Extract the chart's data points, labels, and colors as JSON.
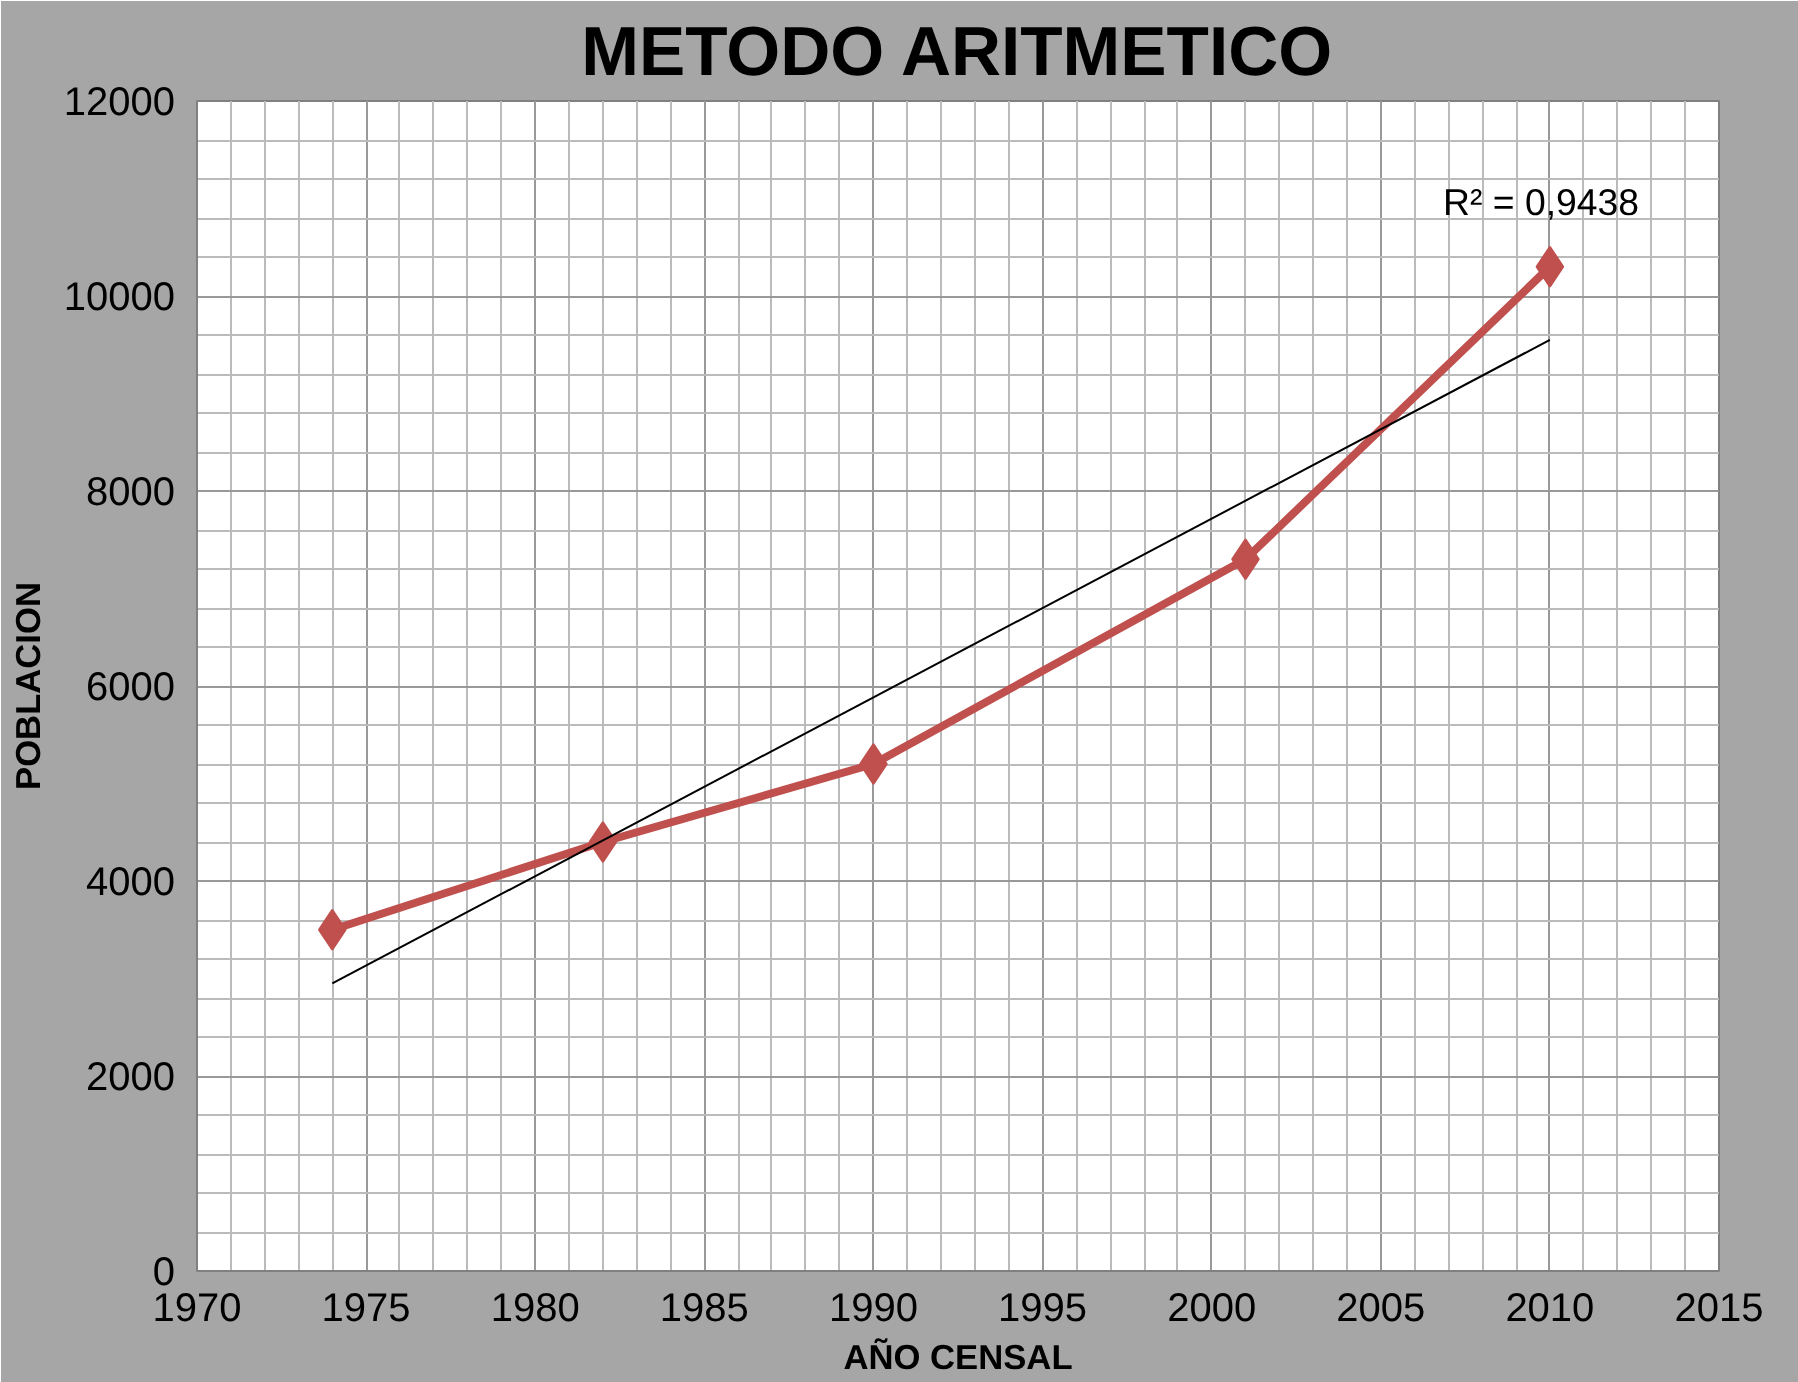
{
  "chart_data": {
    "type": "line",
    "title": "METODO ARITMETICO",
    "xlabel": "AÑO CENSAL",
    "ylabel": "POBLACION",
    "x": [
      1974,
      1982,
      1990,
      2001,
      2010
    ],
    "series": [
      {
        "color": "#c0504d",
        "values": [
          3500,
          4400,
          5200,
          7300,
          10300
        ],
        "marker": "diamond"
      },
      {
        "type": "line",
        "color": "#000000",
        "x": [
          1974,
          2010
        ],
        "values": [
          2950,
          9550
        ],
        "marker": "none"
      }
    ],
    "annotations": [
      "R² = 0,9438"
    ],
    "xlim": [
      1970,
      2015
    ],
    "xticks": [
      1970,
      1975,
      1980,
      1985,
      1990,
      1995,
      2000,
      2005,
      2010,
      2015
    ],
    "ylim": [
      0,
      12000
    ],
    "yticks": [
      0,
      2000,
      4000,
      6000,
      8000,
      10000,
      12000
    ],
    "grid": true
  }
}
